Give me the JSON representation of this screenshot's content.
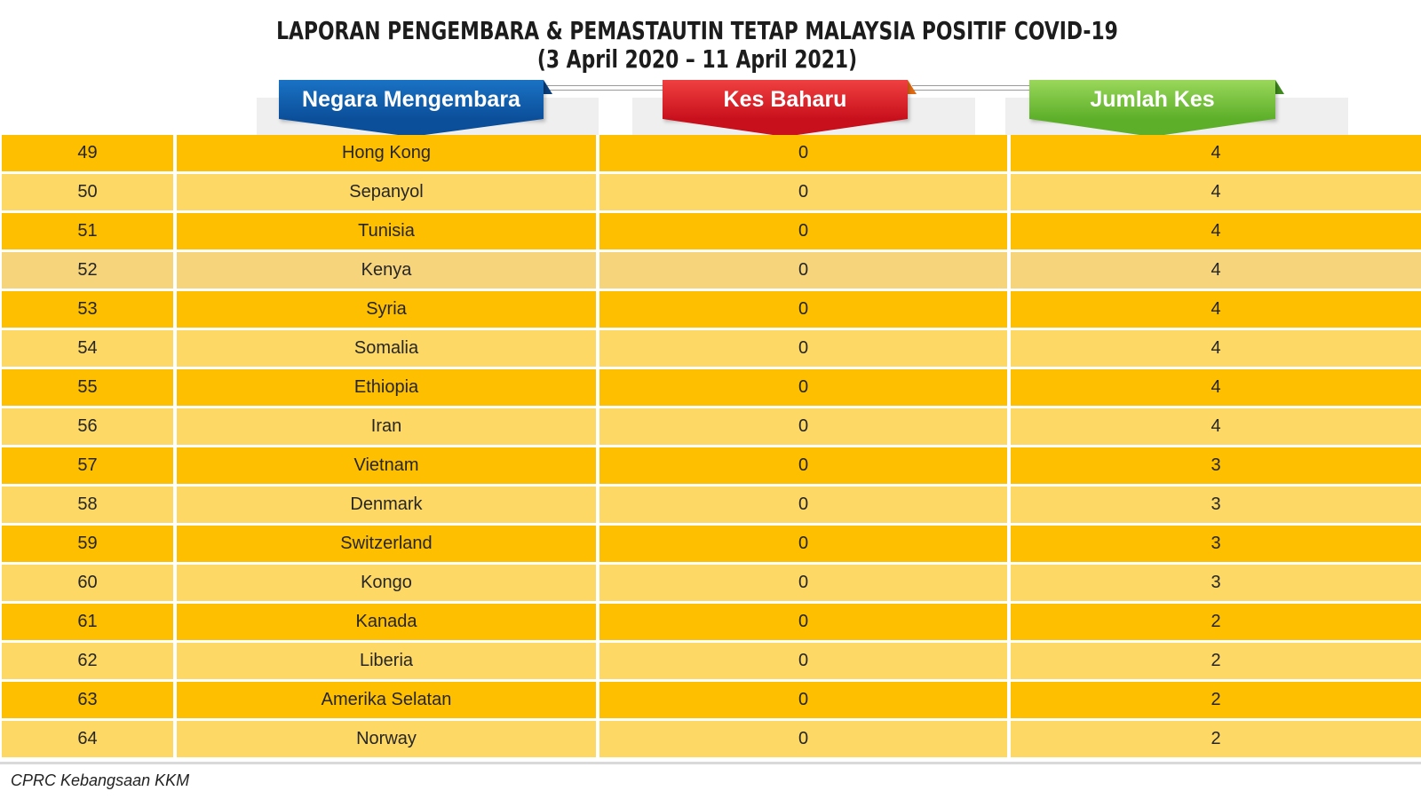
{
  "title": {
    "line1": "LAPORAN PENGEMBARA & PEMASTAUTIN TETAP MALAYSIA POSITIF COVID-19",
    "line2": "(3 April 2020 – 11 April 2021)"
  },
  "headers": {
    "country": "Negara Mengembara",
    "new_cases": "Kes Baharu",
    "total_cases": "Jumlah Kes"
  },
  "colors": {
    "country_banner": "#0b4f9a",
    "new_cases_banner": "#c8101c",
    "total_cases_banner": "#5daf2a",
    "row_dark": "#fdbf00",
    "row_light": "#fdd864"
  },
  "rows": [
    {
      "no": "49",
      "country": "Hong Kong",
      "new": "0",
      "total": "4"
    },
    {
      "no": "50",
      "country": "Sepanyol",
      "new": "0",
      "total": "4"
    },
    {
      "no": "51",
      "country": "Tunisia",
      "new": "0",
      "total": "4"
    },
    {
      "no": "52",
      "country": "Kenya",
      "new": "0",
      "total": "4"
    },
    {
      "no": "53",
      "country": "Syria",
      "new": "0",
      "total": "4"
    },
    {
      "no": "54",
      "country": "Somalia",
      "new": "0",
      "total": "4"
    },
    {
      "no": "55",
      "country": "Ethiopia",
      "new": "0",
      "total": "4"
    },
    {
      "no": "56",
      "country": "Iran",
      "new": "0",
      "total": "4"
    },
    {
      "no": "57",
      "country": "Vietnam",
      "new": "0",
      "total": "3"
    },
    {
      "no": "58",
      "country": "Denmark",
      "new": "0",
      "total": "3"
    },
    {
      "no": "59",
      "country": "Switzerland",
      "new": "0",
      "total": "3"
    },
    {
      "no": "60",
      "country": "Kongo",
      "new": "0",
      "total": "3"
    },
    {
      "no": "61",
      "country": "Kanada",
      "new": "0",
      "total": "2"
    },
    {
      "no": "62",
      "country": "Liberia",
      "new": "0",
      "total": "2"
    },
    {
      "no": "63",
      "country": "Amerika Selatan",
      "new": "0",
      "total": "2"
    },
    {
      "no": "64",
      "country": "Norway",
      "new": "0",
      "total": "2"
    }
  ],
  "footer": "CPRC Kebangsaan KKM"
}
